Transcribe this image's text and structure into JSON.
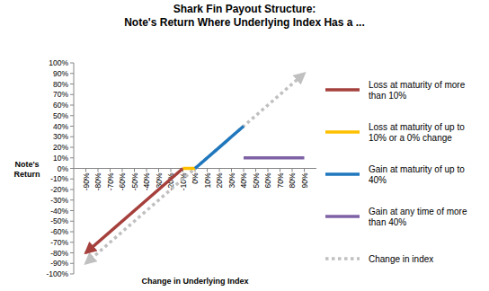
{
  "chart_data": {
    "type": "line",
    "title": "Shark Fin Payout Structure:",
    "subtitle": "Note's Return Where Underlying Index Has a ...",
    "x_label": "Change in Underlying Index",
    "y_label": "Note's Return",
    "xlim": [
      -100,
      100
    ],
    "ylim": [
      -100,
      100
    ],
    "xticks": [
      {
        "value": -90,
        "label": "-90%"
      },
      {
        "value": -80,
        "label": "-80%"
      },
      {
        "value": -70,
        "label": "-70%"
      },
      {
        "value": -60,
        "label": "-60%"
      },
      {
        "value": -50,
        "label": "-50%"
      },
      {
        "value": -40,
        "label": "-40%"
      },
      {
        "value": -30,
        "label": "-30%"
      },
      {
        "value": -20,
        "label": "-20%"
      },
      {
        "value": -10,
        "label": "-10%"
      },
      {
        "value": 0,
        "label": "0%"
      },
      {
        "value": 10,
        "label": "10%"
      },
      {
        "value": 20,
        "label": "20%"
      },
      {
        "value": 30,
        "label": "30%"
      },
      {
        "value": 40,
        "label": "40%"
      },
      {
        "value": 50,
        "label": "50%"
      },
      {
        "value": 60,
        "label": "60%"
      },
      {
        "value": 70,
        "label": "70%"
      },
      {
        "value": 80,
        "label": "80%"
      },
      {
        "value": 90,
        "label": "90%"
      }
    ],
    "yticks": [
      {
        "value": 100,
        "label": "100%"
      },
      {
        "value": 90,
        "label": "90%"
      },
      {
        "value": 80,
        "label": "80%"
      },
      {
        "value": 70,
        "label": "70%"
      },
      {
        "value": 60,
        "label": "60%"
      },
      {
        "value": 50,
        "label": "50%"
      },
      {
        "value": 40,
        "label": "40%"
      },
      {
        "value": 30,
        "label": "30%"
      },
      {
        "value": 20,
        "label": "20%"
      },
      {
        "value": 10,
        "label": "10%"
      },
      {
        "value": 0,
        "label": "0%"
      },
      {
        "value": -10,
        "label": "-10%"
      },
      {
        "value": -20,
        "label": "-20%"
      },
      {
        "value": -30,
        "label": "-30%"
      },
      {
        "value": -40,
        "label": "-40%"
      },
      {
        "value": -50,
        "label": "-50%"
      },
      {
        "value": -60,
        "label": "-60%"
      },
      {
        "value": -70,
        "label": "-70%"
      },
      {
        "value": -80,
        "label": "-80%"
      },
      {
        "value": -90,
        "label": "-90%"
      },
      {
        "value": -100,
        "label": "-100%"
      }
    ],
    "grid": false,
    "legend": "right",
    "series": [
      {
        "name": "Loss at maturity of more than 10%",
        "color": "#a5403c",
        "marker": "arrow",
        "line_style": "solid",
        "x": [
          -90,
          -10
        ],
        "values": [
          -80,
          0
        ]
      },
      {
        "name": "Loss at maturity of up to 10% or a 0% change",
        "color": "#ffc000",
        "line_style": "solid",
        "x": [
          -10,
          0
        ],
        "values": [
          0,
          0
        ]
      },
      {
        "name": "Gain at maturity of up to 40%",
        "color": "#1f77bd",
        "line_style": "solid",
        "x": [
          0,
          40
        ],
        "values": [
          0,
          40
        ]
      },
      {
        "name": "Gain at any time of more than 40%",
        "color": "#7f62a6",
        "line_style": "solid",
        "x": [
          40,
          90
        ],
        "values": [
          10,
          10
        ]
      },
      {
        "name": "Change in index",
        "color": "#c0c0c0",
        "marker": "arrows",
        "line_style": "dotted",
        "x": [
          -90,
          90
        ],
        "values": [
          -90,
          90
        ]
      }
    ]
  }
}
